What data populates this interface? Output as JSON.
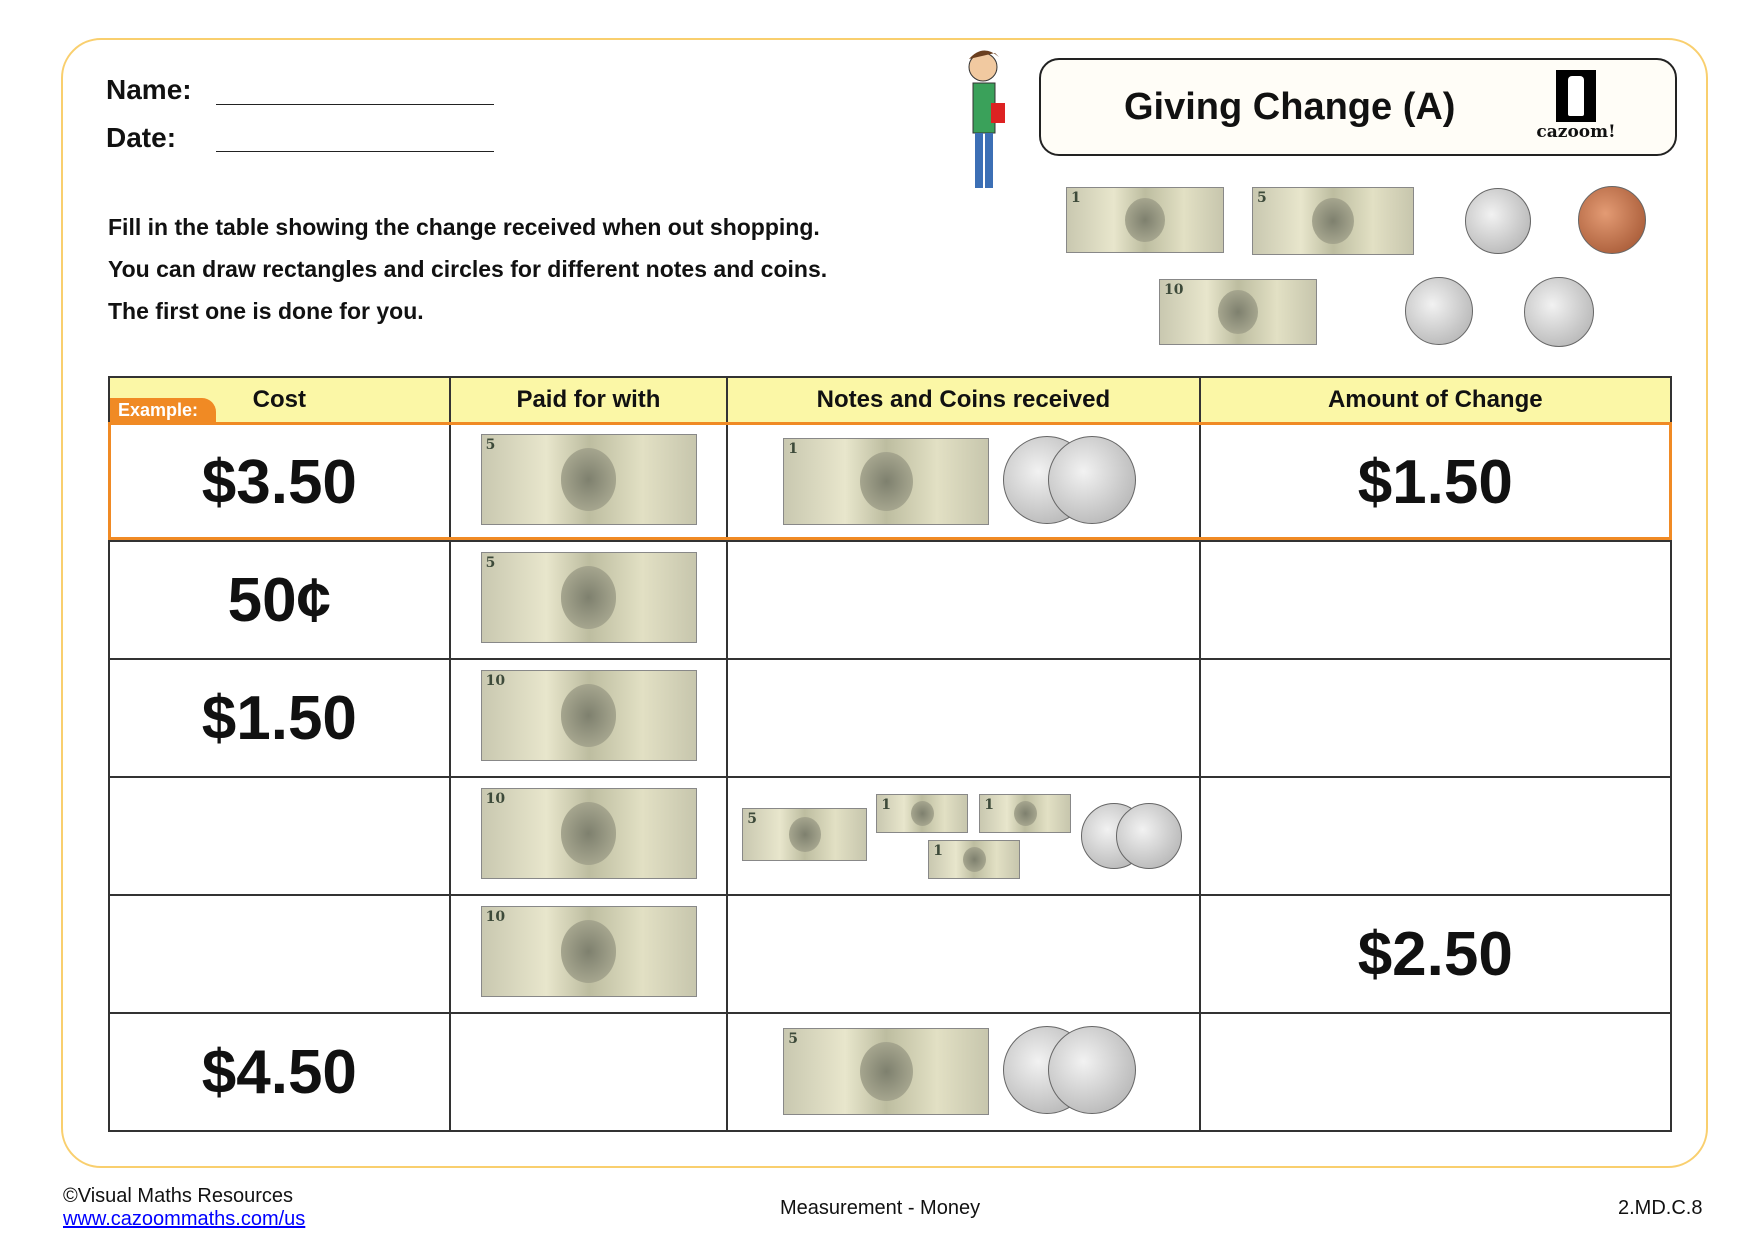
{
  "header": {
    "name_label": "Name:",
    "date_label": "Date:",
    "title": "Giving Change (A)",
    "logo_text": "cazoom!"
  },
  "instructions": [
    "Fill in the table showing the change received when out shopping.",
    "You can draw rectangles and circles for different notes and coins.",
    "The first one is done for you."
  ],
  "legend": {
    "notes": [
      "1",
      "5",
      "10"
    ],
    "coins": [
      "dime",
      "penny",
      "quarter",
      "nickel"
    ]
  },
  "table": {
    "example_label": "Example:",
    "columns": [
      "Cost",
      "Paid for with",
      "Notes and Coins received",
      "Amount of Change"
    ],
    "rows": [
      {
        "cost": "$3.50",
        "paid": [
          "5"
        ],
        "received": [
          "1",
          "quarter",
          "quarter"
        ],
        "change": "$1.50"
      },
      {
        "cost": "50¢",
        "paid": [
          "5"
        ],
        "received": [],
        "change": ""
      },
      {
        "cost": "$1.50",
        "paid": [
          "10"
        ],
        "received": [],
        "change": ""
      },
      {
        "cost": "",
        "paid": [
          "10"
        ],
        "received": [
          "5",
          "1",
          "1",
          "1",
          "quarter",
          "quarter"
        ],
        "change": ""
      },
      {
        "cost": "",
        "paid": [
          "10"
        ],
        "received": [],
        "change": "$2.50"
      },
      {
        "cost": "$4.50",
        "paid": [],
        "received": [
          "5",
          "quarter",
          "quarter"
        ],
        "change": ""
      }
    ]
  },
  "footer": {
    "copyright": "©Visual Maths Resources",
    "link": "www.cazoommaths.com/us",
    "topic": "Measurement - Money",
    "standard": "2.MD.C.8"
  },
  "colors": {
    "border": "#f9cf6e",
    "header_fill": "#fbf7a6",
    "example": "#f08a24"
  }
}
